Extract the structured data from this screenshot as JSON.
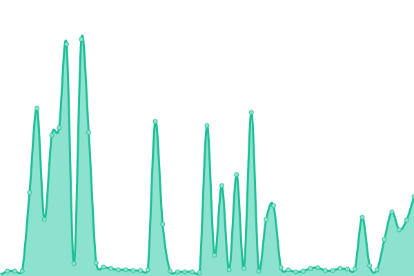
{
  "chart_data": {
    "type": "area",
    "title": "",
    "xlabel": "",
    "ylabel": "",
    "x": [
      0,
      1,
      2,
      3,
      4,
      5,
      6,
      7,
      8,
      9,
      10,
      11,
      12,
      13,
      14,
      15,
      16,
      17,
      18,
      19,
      20,
      21,
      22,
      23,
      24,
      25,
      26,
      27,
      28,
      29,
      30,
      31,
      32,
      33,
      34,
      35,
      36,
      37,
      38,
      39,
      40,
      41,
      42,
      43,
      44,
      45,
      46,
      47,
      48,
      49,
      50,
      51,
      52,
      53,
      54,
      55,
      56
    ],
    "values": [
      1,
      7,
      7,
      7,
      121,
      243,
      82,
      204,
      215,
      336,
      18,
      343,
      208,
      19,
      13,
      11,
      9,
      9,
      8,
      8,
      9,
      224,
      75,
      7,
      6,
      6,
      6,
      5,
      218,
      30,
      131,
      9,
      147,
      11,
      237,
      7,
      82,
      102,
      12,
      9,
      6,
      7,
      11,
      12,
      8,
      8,
      11,
      10,
      10,
      85,
      15,
      9,
      53,
      93,
      67,
      81,
      115
    ],
    "ylim": [
      0,
      400
    ],
    "grid": false,
    "axes_visible": false,
    "smooth": true,
    "markers": true,
    "colors": {
      "line": "#1dbf97",
      "fill": "#8ce2cf",
      "marker_fill": "#8ce2cf",
      "marker_stroke": "#2cc39e"
    }
  }
}
